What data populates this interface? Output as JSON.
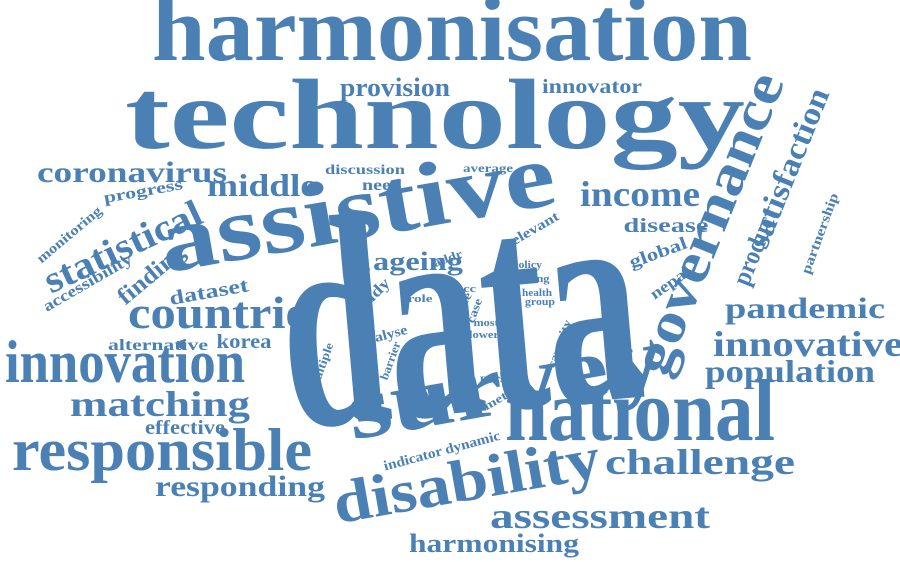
{
  "colors": {
    "word": "#4a80b4",
    "background": "#ffffff"
  },
  "words": [
    "harmonisation",
    "technology",
    "data",
    "assistive",
    "survey",
    "national",
    "governance",
    "disability",
    "responsible",
    "innovation",
    "countrie",
    "statistical",
    "matching",
    "satisfaction",
    "innovative",
    "population",
    "pandemic",
    "challenge",
    "assessment",
    "income",
    "middle",
    "coronavirus",
    "provision",
    "harmonising",
    "responding",
    "innovator",
    "ageing",
    "product",
    "finding",
    "effective",
    "korea",
    "disease",
    "alternative",
    "dataset",
    "accessibility",
    "monitoring",
    "progress",
    "discussion",
    "need",
    "average",
    "global",
    "nepal",
    "partnership",
    "relevant",
    "indicator dynamic",
    "method",
    "person",
    "capacity",
    "multiple",
    "analyse",
    "barrier",
    "healthy",
    "study",
    "addr",
    "policy",
    "setting",
    "health",
    "group",
    "role",
    "acc",
    "rate",
    "case",
    "most",
    "lower"
  ]
}
